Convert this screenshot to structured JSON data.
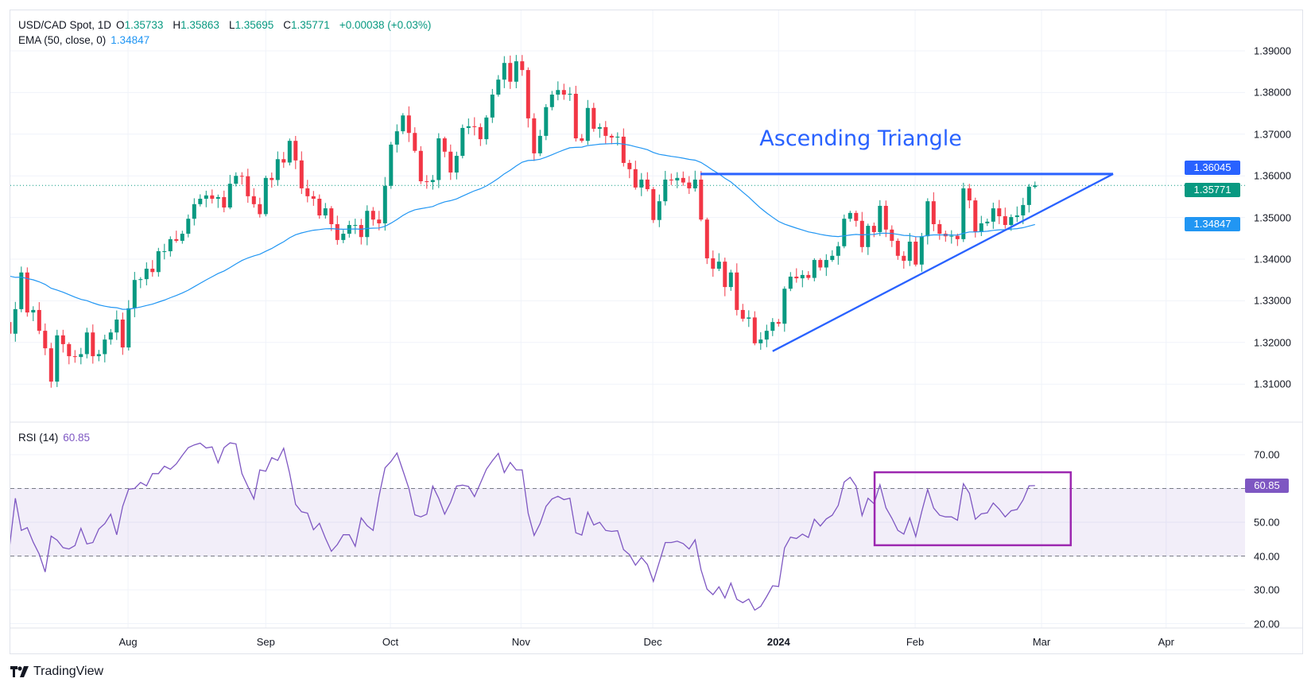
{
  "legend": {
    "symbol": "USD/CAD Spot, 1D",
    "open_label": "O",
    "open": "1.35733",
    "high_label": "H",
    "high": "1.35863",
    "low_label": "L",
    "low": "1.35695",
    "close_label": "C",
    "close": "1.35771",
    "change": "+0.00038 (+0.03%)",
    "ema_label": "EMA (50, close, 0)",
    "ema_value": "1.34847",
    "rsi_label": "RSI (14)",
    "rsi_value": "60.85"
  },
  "brand": "TradingView",
  "colors": {
    "up": "#089981",
    "down": "#f23645",
    "ema": "#2196f3",
    "rsi": "#7e57c2",
    "drawing": "#2962ff",
    "box": "#9c27b0"
  },
  "chart_data": {
    "type": "candlestick",
    "title": "USD/CAD Spot, 1D",
    "first_open": 1.3249,
    "last_bar": {
      "open": 1.35733,
      "high": 1.35863,
      "low": 1.35695,
      "close": 1.35771
    },
    "closes": [
      1.3221,
      1.328,
      1.3368,
      1.3272,
      1.3278,
      1.3228,
      1.3186,
      1.3106,
      1.3217,
      1.3196,
      1.3167,
      1.3165,
      1.3172,
      1.3224,
      1.3167,
      1.3172,
      1.3207,
      1.3224,
      1.3255,
      1.3188,
      1.3282,
      1.335,
      1.3352,
      1.3377,
      1.3369,
      1.3419,
      1.3419,
      1.3448,
      1.3444,
      1.3461,
      1.3497,
      1.3532,
      1.3545,
      1.3553,
      1.3545,
      1.3549,
      1.3524,
      1.3581,
      1.36,
      1.3599,
      1.3551,
      1.3532,
      1.3508,
      1.3595,
      1.359,
      1.364,
      1.3632,
      1.3684,
      1.3637,
      1.357,
      1.3551,
      1.3545,
      1.3505,
      1.3522,
      1.3484,
      1.3446,
      1.3461,
      1.3482,
      1.3482,
      1.3453,
      1.3516,
      1.3495,
      1.3486,
      1.3576,
      1.3675,
      1.3707,
      1.3745,
      1.3703,
      1.366,
      1.3587,
      1.3585,
      1.359,
      1.369,
      1.3658,
      1.3608,
      1.3648,
      1.3715,
      1.3719,
      1.3717,
      1.3688,
      1.374,
      1.3795,
      1.3831,
      1.3871,
      1.3826,
      1.3875,
      1.3854,
      1.3738,
      1.3654,
      1.3696,
      1.3765,
      1.3795,
      1.3806,
      1.3795,
      1.3797,
      1.369,
      1.3684,
      1.3763,
      1.3713,
      1.3717,
      1.3696,
      1.3692,
      1.3694,
      1.3631,
      1.3616,
      1.3572,
      1.3591,
      1.3568,
      1.3494,
      1.3539,
      1.3591,
      1.3589,
      1.3595,
      1.3584,
      1.357,
      1.3591,
      1.3495,
      1.3402,
      1.3377,
      1.3394,
      1.3333,
      1.3368,
      1.3278,
      1.3257,
      1.326,
      1.3198,
      1.3207,
      1.3228,
      1.3249,
      1.3245,
      1.3329,
      1.3358,
      1.3354,
      1.3362,
      1.3355,
      1.3398,
      1.338,
      1.3398,
      1.3408,
      1.3431,
      1.3497,
      1.3511,
      1.3492,
      1.3429,
      1.348,
      1.3465,
      1.3528,
      1.3471,
      1.3444,
      1.3408,
      1.3396,
      1.3442,
      1.3387,
      1.3455,
      1.3539,
      1.3484,
      1.3461,
      1.3455,
      1.3456,
      1.3448,
      1.357,
      1.3541,
      1.3465,
      1.3486,
      1.349,
      1.3522,
      1.3503,
      1.3482,
      1.3501,
      1.3505,
      1.353,
      1.3574,
      1.35771
    ],
    "ema_period": 50,
    "ema_start": 1.3365,
    "rsi_period": 14,
    "rsi": [
      42.2,
      57.1,
      47.6,
      48.4,
      44.1,
      40.6,
      35.3,
      45.9,
      44.7,
      42.5,
      42.1,
      43.1,
      48.2,
      43.6,
      44.0,
      48.0,
      49.6,
      52.4,
      46.3,
      54.7,
      59.8,
      60.0,
      61.8,
      60.8,
      64.4,
      64.4,
      66.6,
      65.7,
      67.3,
      69.8,
      72.1,
      72.9,
      73.4,
      72.0,
      72.3,
      67.6,
      72.1,
      73.5,
      73.2,
      64.4,
      60.6,
      56.9,
      65.5,
      65.1,
      69.1,
      68.3,
      71.9,
      64.5,
      55.3,
      53.1,
      52.7,
      47.8,
      49.7,
      45.3,
      41.4,
      43.4,
      46.3,
      46.3,
      42.9,
      51.3,
      49.0,
      47.6,
      57.8,
      66.1,
      68.0,
      70.5,
      65.3,
      60.0,
      52.2,
      51.6,
      52.4,
      60.7,
      57.1,
      52.4,
      55.9,
      60.7,
      61.0,
      60.6,
      57.6,
      61.6,
      65.7,
      68.2,
      70.4,
      64.7,
      67.7,
      65.5,
      65.5,
      52.7,
      46.1,
      49.6,
      54.7,
      56.9,
      57.7,
      56.7,
      57.1,
      46.9,
      46.2,
      53.0,
      49.2,
      50.0,
      47.6,
      47.3,
      47.5,
      41.9,
      40.4,
      37.3,
      39.6,
      37.5,
      32.5,
      38.2,
      44.0,
      44.0,
      44.4,
      43.7,
      42.1,
      44.8,
      35.9,
      30.2,
      28.6,
      30.9,
      27.6,
      32.0,
      27.2,
      26.2,
      27.3,
      24.0,
      25.1,
      28.0,
      31.2,
      31.0,
      42.4,
      45.6,
      45.2,
      46.5,
      45.5,
      50.9,
      48.9,
      51.0,
      52.1,
      55.0,
      61.9,
      63.3,
      60.7,
      52.0,
      57.1,
      55.5,
      61.1,
      54.3,
      51.2,
      47.6,
      46.5,
      51.3,
      45.8,
      53.1,
      59.7,
      54.2,
      52.1,
      51.6,
      51.6,
      50.6,
      61.4,
      58.6,
      50.9,
      52.5,
      52.8,
      55.7,
      53.9,
      51.6,
      53.4,
      53.8,
      56.6,
      60.8,
      60.85
    ],
    "price_axis": {
      "ticks": [
        "1.39000",
        "1.38000",
        "1.37000",
        "1.36000",
        "1.35000",
        "1.34000",
        "1.33000",
        "1.32000",
        "1.31000"
      ],
      "range": [
        1.3015,
        1.399
      ]
    },
    "rsi_axis": {
      "ticks": [
        "70.00",
        "50.00",
        "40.00",
        "30.00",
        "20.00"
      ],
      "bands": [
        40,
        60
      ],
      "range": [
        17,
        80
      ]
    },
    "time_axis": [
      {
        "label": "Aug",
        "bar": 19.9
      },
      {
        "label": "Sep",
        "bar": 43.0
      },
      {
        "label": "Oct",
        "bar": 63.9
      },
      {
        "label": "Nov",
        "bar": 85.8
      },
      {
        "label": "Dec",
        "bar": 107.9
      },
      {
        "label": "2024",
        "bar": 129.0,
        "year": true
      },
      {
        "label": "Feb",
        "bar": 151.9
      },
      {
        "label": "Mar",
        "bar": 173.1
      },
      {
        "label": "Apr",
        "bar": 194.0
      }
    ],
    "price_labels": {
      "resistance": "1.36045",
      "last": "1.35771",
      "ema": "1.34847",
      "rsi": "60.85"
    },
    "drawings": {
      "resistance": {
        "price": 1.36045,
        "from_bar": 115.9,
        "to_bar": 185.1
      },
      "support": {
        "from_bar": 128.0,
        "from_price": 1.3179,
        "to_bar": 185.1,
        "to_price": 1.36045
      },
      "annotation": {
        "text": "Ascending Triangle",
        "bar": 125.8,
        "price": 1.366
      },
      "rsi_box": {
        "from_bar": 145.1,
        "to_bar": 178.0,
        "top": 64.8,
        "bottom": 43.2
      }
    }
  }
}
